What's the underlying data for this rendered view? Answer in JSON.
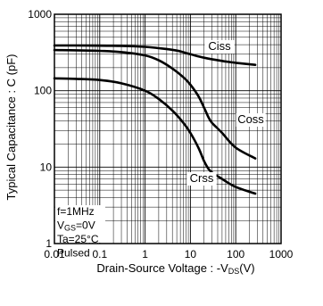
{
  "chart_data": {
    "type": "line",
    "title": "",
    "xlabel": {
      "main": "Drain-Source Voltage : -V",
      "sub": "DS",
      "unit": "(V)"
    },
    "ylabel": "Typical Capacitance : C (pF)",
    "xscale": "log",
    "yscale": "log",
    "xlim": [
      0.01,
      1000
    ],
    "ylim": [
      1,
      1000
    ],
    "x_ticks": [
      "0.01",
      "0.1",
      "1",
      "10",
      "100",
      "1000"
    ],
    "y_ticks": [
      "1",
      "10",
      "100",
      "1000"
    ],
    "grid": true,
    "series": [
      {
        "name": "Ciss",
        "x": [
          0.01,
          0.03,
          0.1,
          0.3,
          1,
          2,
          5,
          10,
          20,
          50,
          100,
          270
        ],
        "y": [
          390,
          390,
          388,
          385,
          375,
          360,
          335,
          300,
          270,
          245,
          232,
          218
        ]
      },
      {
        "name": "Coss",
        "x": [
          0.01,
          0.03,
          0.1,
          0.3,
          1,
          2,
          4,
          7,
          10,
          15,
          20,
          25,
          30,
          50,
          100,
          270
        ],
        "y": [
          340,
          338,
          332,
          320,
          290,
          250,
          195,
          150,
          120,
          85,
          60,
          45,
          38,
          28,
          18,
          13
        ]
      },
      {
        "name": "Crss",
        "x": [
          0.01,
          0.03,
          0.1,
          0.3,
          1,
          2,
          4,
          7,
          10,
          15,
          20,
          25,
          30,
          50,
          100,
          270
        ],
        "y": [
          145,
          143,
          138,
          125,
          100,
          78,
          55,
          38,
          28,
          18,
          12,
          9.5,
          8.5,
          7,
          5.5,
          4.5
        ]
      }
    ],
    "conditions": [
      {
        "main": "f=1MHz"
      },
      {
        "main": "V",
        "sub": "GS",
        "rest": "=0V"
      },
      {
        "main": "Ta=25°C"
      },
      {
        "main": "Pulsed"
      }
    ]
  }
}
